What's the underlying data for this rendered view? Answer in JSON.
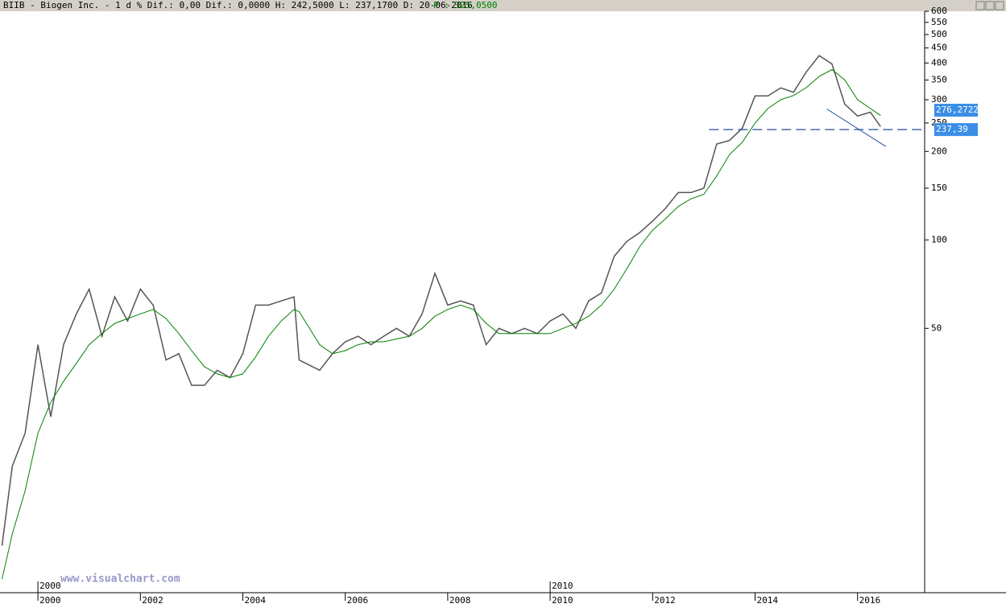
{
  "chart_data": {
    "type": "line",
    "header": "BIIB - Biogen Inc. - 1 d % Dif.: 0,00 Dif.: 0,0000 H: 242,5000 L: 237,1700 D: 20-06-2016",
    "header_price": "P : 325,0500",
    "watermark": "www.visualchart.com",
    "log_scale": true,
    "x": [
      1999.3,
      1999.5,
      1999.75,
      2000,
      2000.25,
      2000.5,
      2000.75,
      2001,
      2001.25,
      2001.5,
      2001.75,
      2002,
      2002.25,
      2002.5,
      2002.75,
      2003,
      2003.25,
      2003.5,
      2003.75,
      2004,
      2004.25,
      2004.5,
      2004.75,
      2005,
      2005.1,
      2005.5,
      2005.75,
      2006,
      2006.25,
      2006.5,
      2006.75,
      2007,
      2007.25,
      2007.5,
      2007.75,
      2008,
      2008.25,
      2008.5,
      2008.75,
      2009,
      2009.25,
      2009.5,
      2009.75,
      2010,
      2010.25,
      2010.5,
      2010.75,
      2011,
      2011.25,
      2011.5,
      2011.75,
      2012,
      2012.25,
      2012.5,
      2012.75,
      2013,
      2013.25,
      2013.5,
      2013.75,
      2014,
      2014.25,
      2014.5,
      2014.75,
      2015,
      2015.25,
      2015.5,
      2015.75,
      2016,
      2016.25,
      2016.45
    ],
    "series": [
      {
        "name": "BIIB",
        "color": "#555555",
        "values": [
          9.1,
          17,
          22,
          44,
          25,
          44,
          56,
          68,
          47,
          64,
          53,
          68,
          60,
          39,
          41,
          32,
          32,
          36,
          34,
          41,
          60,
          60,
          62,
          64,
          39,
          36,
          41,
          45,
          47,
          44,
          47,
          50,
          47,
          56,
          77,
          60,
          62,
          60,
          44,
          50,
          48,
          50,
          48,
          53,
          56,
          50,
          62,
          66,
          88,
          99,
          106,
          116,
          128,
          145,
          145,
          150,
          212,
          218,
          240,
          309,
          309,
          329,
          318,
          373,
          424,
          397,
          290,
          264,
          272,
          243
        ]
      },
      {
        "name": "MA",
        "color": "#008000",
        "values": [
          7,
          10,
          14,
          22,
          28,
          33,
          38,
          44,
          48,
          52,
          54,
          56,
          58,
          54,
          48,
          42,
          37,
          35,
          34,
          35,
          40,
          47,
          53,
          58,
          57,
          44,
          41,
          42,
          44,
          45,
          45,
          46,
          47,
          50,
          55,
          58,
          60,
          58,
          52,
          48,
          48,
          48,
          48,
          48,
          50,
          52,
          55,
          60,
          68,
          80,
          95,
          108,
          118,
          130,
          138,
          143,
          165,
          195,
          215,
          250,
          280,
          300,
          310,
          330,
          360,
          380,
          350,
          300,
          280,
          265
        ]
      }
    ],
    "xlim": [
      1999.26,
      2017.31
    ],
    "xticks": [
      2000,
      2002,
      2004,
      2006,
      2008,
      2010,
      2012,
      2014,
      2016
    ],
    "decade_ticks": [
      2000,
      2010
    ],
    "ylim": [
      6.3,
      600
    ],
    "yticks": [
      50,
      100,
      150,
      200,
      250,
      300,
      350,
      400,
      450,
      500,
      550,
      600
    ],
    "support_level": 237.39,
    "trendline": {
      "x": [
        2015.4,
        2016.55
      ],
      "values": [
        279,
        208
      ]
    },
    "price_labels": [
      {
        "value": 276.2722,
        "label": "276,2722"
      },
      {
        "value": 237.39,
        "label": "237,39"
      }
    ]
  }
}
